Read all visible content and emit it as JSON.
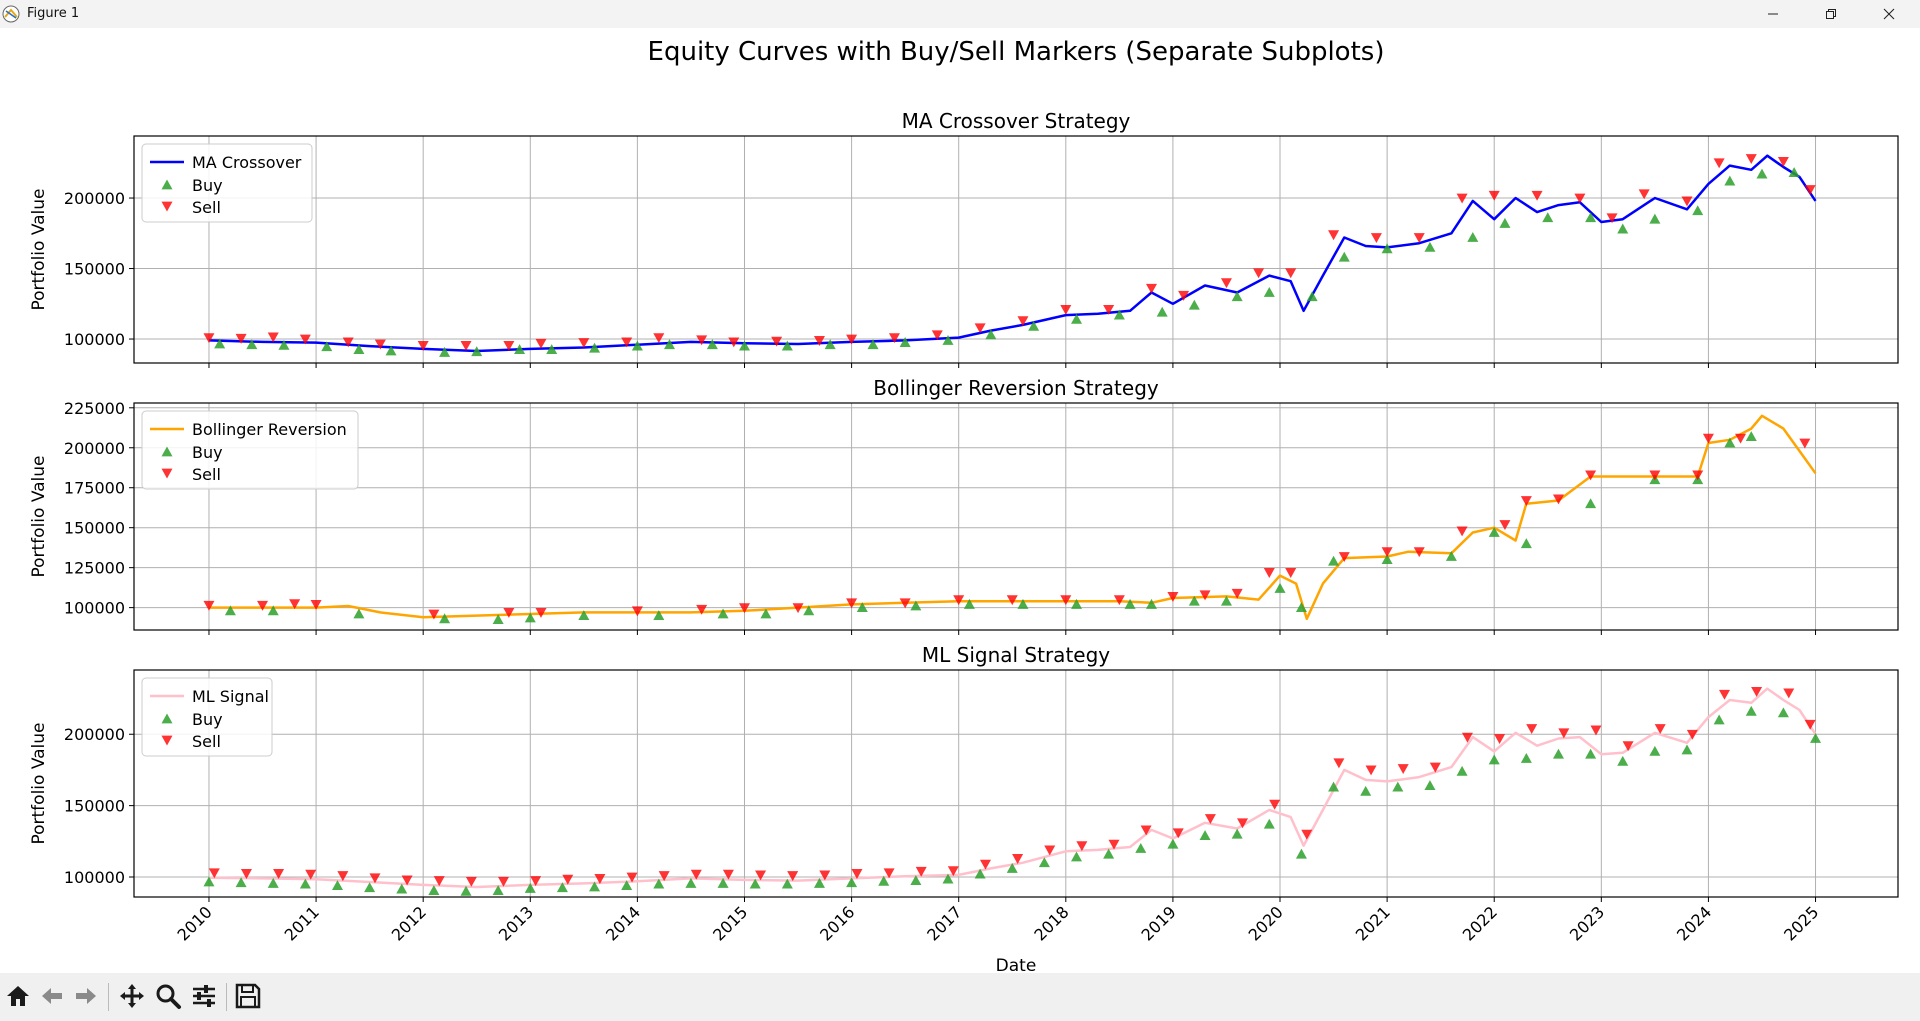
{
  "window": {
    "title": "Figure 1"
  },
  "figure": {
    "suptitle": "Equity Curves with Buy/Sell Markers (Separate Subplots)",
    "xlabel": "Date"
  },
  "toolbar": {
    "icons": [
      "home-icon",
      "back-arrow-icon",
      "forward-arrow-icon",
      "pan-icon",
      "zoom-icon",
      "configure-subplots-icon",
      "save-icon"
    ]
  },
  "colors": {
    "buy": "#2ca02c",
    "sell": "#ff0000",
    "grid": "#b0b0b0"
  },
  "chart_data": [
    {
      "type": "line",
      "title": "MA Crossover Strategy",
      "ylabel": "Portfolio Value",
      "xlim": [
        2009.3,
        2025.77
      ],
      "ylim": [
        83000,
        244000
      ],
      "yticks": [
        100000,
        150000,
        200000
      ],
      "xticks": [
        2010,
        2011,
        2012,
        2013,
        2014,
        2015,
        2016,
        2017,
        2018,
        2019,
        2020,
        2021,
        2022,
        2023,
        2024,
        2025
      ],
      "grid": true,
      "legend": {
        "placement": "upper-left",
        "entries": [
          "MA Crossover",
          "Buy",
          "Sell"
        ]
      },
      "series": [
        {
          "name": "MA Crossover",
          "color": "#0000ff",
          "x": [
            2010.0,
            2010.5,
            2011.0,
            2011.5,
            2012.0,
            2012.5,
            2013.0,
            2013.5,
            2014.0,
            2014.5,
            2015.0,
            2015.5,
            2016.0,
            2016.5,
            2017.0,
            2017.3,
            2017.6,
            2018.0,
            2018.3,
            2018.6,
            2018.8,
            2019.0,
            2019.3,
            2019.6,
            2019.9,
            2020.1,
            2020.22,
            2020.4,
            2020.6,
            2020.8,
            2021.0,
            2021.3,
            2021.6,
            2021.8,
            2022.0,
            2022.2,
            2022.4,
            2022.6,
            2022.8,
            2023.0,
            2023.2,
            2023.5,
            2023.8,
            2024.0,
            2024.2,
            2024.4,
            2024.55,
            2024.7,
            2024.85,
            2025.0
          ],
          "y": [
            99000,
            98000,
            97500,
            95000,
            93000,
            91500,
            93000,
            94000,
            96000,
            98000,
            97000,
            96500,
            98000,
            99000,
            101000,
            106000,
            110000,
            117000,
            118000,
            120000,
            133000,
            125000,
            138000,
            133000,
            145000,
            141000,
            120000,
            145000,
            172000,
            166000,
            165000,
            168000,
            175000,
            198000,
            185000,
            200000,
            190000,
            195000,
            197000,
            183000,
            185000,
            200000,
            192000,
            210000,
            223000,
            220000,
            230000,
            222000,
            215000,
            198000
          ]
        }
      ],
      "markers": {
        "buy_x": [
          2010.1,
          2010.4,
          2010.7,
          2011.1,
          2011.4,
          2011.7,
          2012.2,
          2012.5,
          2012.9,
          2013.2,
          2013.6,
          2014.0,
          2014.3,
          2014.7,
          2015.0,
          2015.4,
          2015.8,
          2016.2,
          2016.5,
          2016.9,
          2017.3,
          2017.7,
          2018.1,
          2018.5,
          2018.9,
          2019.2,
          2019.6,
          2019.9,
          2020.3,
          2020.6,
          2021.0,
          2021.4,
          2021.8,
          2022.1,
          2022.5,
          2022.9,
          2023.2,
          2023.5,
          2023.9,
          2024.2,
          2024.5,
          2024.8
        ],
        "buy_y": [
          96500,
          96000,
          95500,
          94500,
          92500,
          91500,
          90500,
          91000,
          92500,
          92500,
          93500,
          95000,
          96000,
          96000,
          95000,
          95000,
          96000,
          96000,
          97500,
          99000,
          103000,
          109000,
          114000,
          117000,
          119000,
          124000,
          130000,
          133000,
          130000,
          158000,
          164000,
          165000,
          172000,
          182000,
          186000,
          186000,
          178000,
          185000,
          191000,
          212000,
          217000,
          218000
        ],
        "sell_x": [
          2010.0,
          2010.3,
          2010.6,
          2010.9,
          2011.3,
          2011.6,
          2012.0,
          2012.4,
          2012.8,
          2013.1,
          2013.5,
          2013.9,
          2014.2,
          2014.6,
          2014.9,
          2015.3,
          2015.7,
          2016.0,
          2016.4,
          2016.8,
          2017.2,
          2017.6,
          2018.0,
          2018.4,
          2018.8,
          2019.1,
          2019.5,
          2019.8,
          2020.1,
          2020.5,
          2020.9,
          2021.3,
          2021.7,
          2022.0,
          2022.4,
          2022.8,
          2023.1,
          2023.4,
          2023.8,
          2024.1,
          2024.4,
          2024.7,
          2024.95
        ],
        "sell_y": [
          101000,
          100500,
          101500,
          100000,
          98000,
          96500,
          95500,
          95500,
          95500,
          97000,
          97500,
          98000,
          101000,
          99500,
          98000,
          98500,
          99000,
          100000,
          101000,
          103000,
          108000,
          113000,
          121000,
          121000,
          136000,
          131000,
          140000,
          147000,
          147000,
          174000,
          172000,
          172000,
          200000,
          202000,
          202000,
          200000,
          186000,
          203000,
          198000,
          225000,
          228000,
          226000,
          206000
        ]
      }
    },
    {
      "type": "line",
      "title": "Bollinger Reversion Strategy",
      "ylabel": "Portfolio Value",
      "xlim": [
        2009.3,
        2025.77
      ],
      "ylim": [
        86000,
        228000
      ],
      "yticks": [
        100000,
        125000,
        150000,
        175000,
        200000,
        225000
      ],
      "xticks": [
        2010,
        2011,
        2012,
        2013,
        2014,
        2015,
        2016,
        2017,
        2018,
        2019,
        2020,
        2021,
        2022,
        2023,
        2024,
        2025
      ],
      "grid": true,
      "legend": {
        "placement": "upper-left",
        "entries": [
          "Bollinger Reversion",
          "Buy",
          "Sell"
        ]
      },
      "series": [
        {
          "name": "Bollinger Reversion",
          "color": "#ffa500",
          "x": [
            2010.0,
            2010.5,
            2011.0,
            2011.3,
            2011.6,
            2012.0,
            2012.5,
            2013.0,
            2013.5,
            2014.0,
            2014.5,
            2015.0,
            2015.5,
            2016.0,
            2016.5,
            2017.0,
            2017.5,
            2018.0,
            2018.5,
            2018.8,
            2019.0,
            2019.5,
            2019.8,
            2020.0,
            2020.15,
            2020.25,
            2020.4,
            2020.6,
            2021.0,
            2021.2,
            2021.6,
            2021.8,
            2022.0,
            2022.2,
            2022.3,
            2022.6,
            2022.9,
            2023.0,
            2023.5,
            2023.9,
            2024.0,
            2024.2,
            2024.4,
            2024.5,
            2024.7,
            2024.85,
            2025.0
          ],
          "y": [
            100000,
            100000,
            100000,
            101000,
            97000,
            94000,
            95000,
            96000,
            97000,
            97000,
            97000,
            98000,
            100000,
            102000,
            103000,
            104000,
            104000,
            104000,
            104000,
            103000,
            106000,
            107000,
            105000,
            120000,
            115000,
            93000,
            115000,
            131000,
            132000,
            135000,
            134000,
            147000,
            150000,
            142000,
            165000,
            167000,
            182000,
            182000,
            182000,
            182000,
            203000,
            205000,
            212000,
            220000,
            212000,
            198000,
            184000
          ]
        }
      ],
      "markers": {
        "buy_x": [
          2010.2,
          2010.6,
          2011.4,
          2012.2,
          2012.7,
          2013.0,
          2013.5,
          2014.2,
          2014.8,
          2015.2,
          2015.6,
          2016.1,
          2016.6,
          2017.1,
          2017.6,
          2018.1,
          2018.6,
          2018.8,
          2019.2,
          2019.5,
          2020.0,
          2020.2,
          2020.5,
          2021.0,
          2021.6,
          2022.0,
          2022.3,
          2022.9,
          2023.5,
          2023.9,
          2024.2,
          2024.4
        ],
        "buy_y": [
          98000,
          98000,
          96000,
          93000,
          92500,
          93500,
          95000,
          95000,
          96000,
          96000,
          98000,
          100000,
          101000,
          102000,
          102000,
          102000,
          102000,
          102000,
          104000,
          104000,
          112000,
          100000,
          129000,
          130000,
          132000,
          147000,
          140000,
          165000,
          180000,
          180000,
          203000,
          207000
        ],
        "sell_x": [
          2010.0,
          2010.5,
          2010.8,
          2011.0,
          2012.1,
          2012.8,
          2013.1,
          2014.0,
          2014.6,
          2015.0,
          2015.5,
          2016.0,
          2016.5,
          2017.0,
          2017.5,
          2018.0,
          2018.5,
          2019.0,
          2019.3,
          2019.6,
          2019.9,
          2020.1,
          2020.6,
          2021.0,
          2021.3,
          2021.7,
          2022.1,
          2022.3,
          2022.6,
          2022.9,
          2023.5,
          2023.9,
          2024.0,
          2024.3,
          2024.9
        ],
        "sell_y": [
          101500,
          101500,
          102500,
          102000,
          96000,
          97000,
          97000,
          98000,
          99000,
          100000,
          100000,
          103000,
          103000,
          105000,
          105000,
          105000,
          105000,
          107000,
          108000,
          109000,
          122000,
          122000,
          132000,
          135000,
          135000,
          148000,
          152000,
          167000,
          168000,
          183000,
          183000,
          183000,
          206000,
          206000,
          203000
        ]
      }
    },
    {
      "type": "line",
      "title": "ML Signal Strategy",
      "ylabel": "Portfolio Value",
      "xlim": [
        2009.3,
        2025.77
      ],
      "ylim": [
        86000,
        245000
      ],
      "yticks": [
        100000,
        150000,
        200000
      ],
      "xticks": [
        2010,
        2011,
        2012,
        2013,
        2014,
        2015,
        2016,
        2017,
        2018,
        2019,
        2020,
        2021,
        2022,
        2023,
        2024,
        2025
      ],
      "grid": true,
      "legend": {
        "placement": "upper-left",
        "entries": [
          "ML Signal",
          "Buy",
          "Sell"
        ]
      },
      "series": [
        {
          "name": "ML Signal",
          "color": "#ffc0cb",
          "x": [
            2010.0,
            2010.5,
            2011.0,
            2011.5,
            2012.0,
            2012.5,
            2013.0,
            2013.5,
            2014.0,
            2014.5,
            2015.0,
            2015.5,
            2016.0,
            2016.5,
            2017.0,
            2017.3,
            2017.6,
            2018.0,
            2018.3,
            2018.6,
            2018.8,
            2019.0,
            2019.3,
            2019.6,
            2019.9,
            2020.1,
            2020.22,
            2020.4,
            2020.6,
            2020.8,
            2021.0,
            2021.3,
            2021.6,
            2021.8,
            2022.0,
            2022.2,
            2022.4,
            2022.6,
            2022.8,
            2023.0,
            2023.2,
            2023.5,
            2023.8,
            2024.0,
            2024.2,
            2024.4,
            2024.55,
            2024.7,
            2024.85,
            2025.0
          ],
          "y": [
            99500,
            99000,
            98500,
            96500,
            94500,
            93000,
            94500,
            95500,
            97000,
            99000,
            98000,
            97500,
            99000,
            100500,
            101500,
            106000,
            110000,
            118000,
            119000,
            121000,
            133000,
            127000,
            138000,
            134000,
            147000,
            142000,
            122000,
            147000,
            175000,
            168000,
            167000,
            170000,
            177000,
            198000,
            188000,
            201000,
            192000,
            197000,
            198000,
            186000,
            187000,
            201000,
            194000,
            212000,
            224000,
            222000,
            232000,
            224000,
            217000,
            200000
          ]
        }
      ],
      "markers": {
        "buy_x": [
          2010.0,
          2010.3,
          2010.6,
          2010.9,
          2011.2,
          2011.5,
          2011.8,
          2012.1,
          2012.4,
          2012.7,
          2013.0,
          2013.3,
          2013.6,
          2013.9,
          2014.2,
          2014.5,
          2014.8,
          2015.1,
          2015.4,
          2015.7,
          2016.0,
          2016.3,
          2016.6,
          2016.9,
          2017.2,
          2017.5,
          2017.8,
          2018.1,
          2018.4,
          2018.7,
          2019.0,
          2019.3,
          2019.6,
          2019.9,
          2020.2,
          2020.5,
          2020.8,
          2021.1,
          2021.4,
          2021.7,
          2022.0,
          2022.3,
          2022.6,
          2022.9,
          2023.2,
          2023.5,
          2023.8,
          2024.1,
          2024.4,
          2024.7,
          2025.0
        ],
        "buy_y": [
          96500,
          96000,
          95500,
          95000,
          94000,
          92500,
          91500,
          90500,
          90000,
          90500,
          92000,
          92500,
          93000,
          94000,
          95000,
          95500,
          95500,
          95000,
          95000,
          95500,
          96000,
          97000,
          97500,
          98500,
          102000,
          106000,
          110000,
          114000,
          116000,
          120000,
          123000,
          129000,
          130000,
          137000,
          116000,
          163000,
          160000,
          163000,
          164000,
          174000,
          182000,
          183000,
          186000,
          186000,
          181000,
          188000,
          189000,
          210000,
          216000,
          215000,
          197000
        ],
        "sell_x": [
          2010.05,
          2010.35,
          2010.65,
          2010.95,
          2011.25,
          2011.55,
          2011.85,
          2012.15,
          2012.45,
          2012.75,
          2013.05,
          2013.35,
          2013.65,
          2013.95,
          2014.25,
          2014.55,
          2014.85,
          2015.15,
          2015.45,
          2015.75,
          2016.05,
          2016.35,
          2016.65,
          2016.95,
          2017.25,
          2017.55,
          2017.85,
          2018.15,
          2018.45,
          2018.75,
          2019.05,
          2019.35,
          2019.65,
          2019.95,
          2020.25,
          2020.55,
          2020.85,
          2021.15,
          2021.45,
          2021.75,
          2022.05,
          2022.35,
          2022.65,
          2022.95,
          2023.25,
          2023.55,
          2023.85,
          2024.15,
          2024.45,
          2024.75,
          2024.95
        ],
        "sell_y": [
          103000,
          102500,
          102500,
          102000,
          101000,
          99500,
          98000,
          97500,
          97000,
          97000,
          97500,
          98500,
          99000,
          100000,
          101000,
          102000,
          102000,
          101500,
          101000,
          101500,
          102500,
          103000,
          104000,
          104500,
          109000,
          113000,
          119000,
          122000,
          123000,
          133000,
          131000,
          141000,
          138000,
          151000,
          130000,
          180000,
          175000,
          176000,
          177000,
          198000,
          197000,
          204000,
          201000,
          203000,
          192000,
          204000,
          200000,
          228000,
          230000,
          229000,
          207000
        ]
      }
    }
  ]
}
